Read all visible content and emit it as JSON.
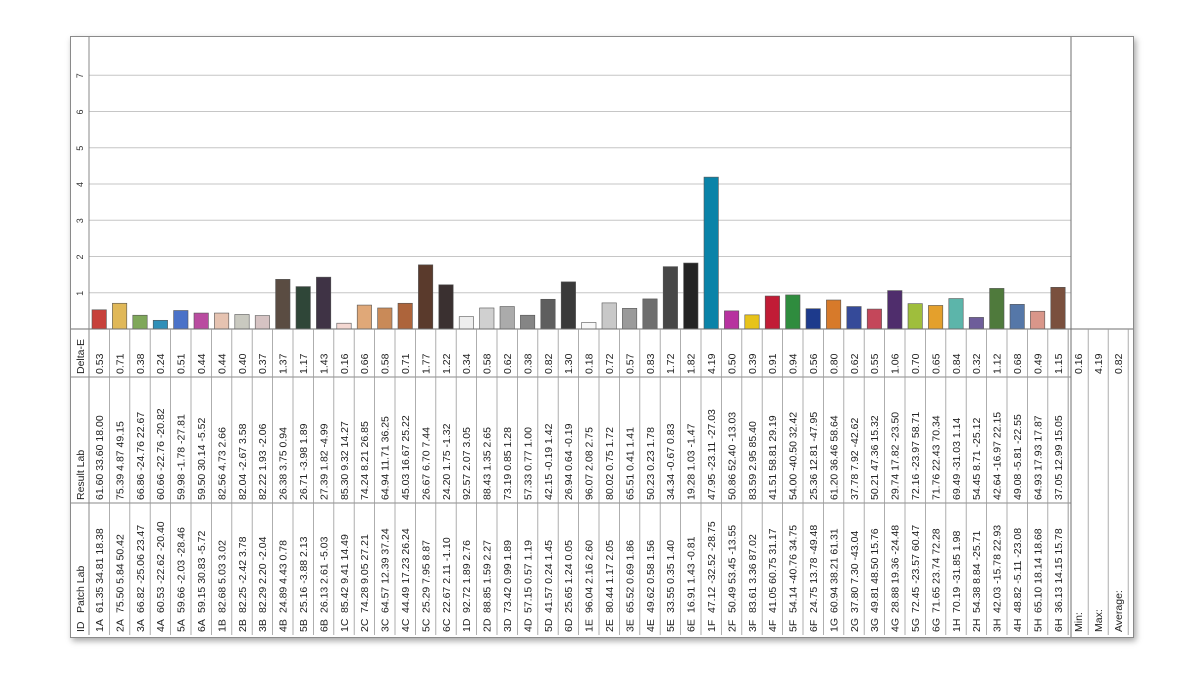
{
  "chart_data": {
    "type": "bar",
    "ylim": [
      0,
      8
    ],
    "yticks": [
      "1",
      "2",
      "3",
      "4",
      "5",
      "6",
      "7"
    ],
    "grid": true,
    "table_headers": {
      "id": "ID",
      "patch_lab": "Patch Lab",
      "result_lab": "Result Lab",
      "delta_e": "Delta-E"
    },
    "categories": [
      "1A",
      "2A",
      "3A",
      "4A",
      "5A",
      "6A",
      "1B",
      "2B",
      "3B",
      "4B",
      "5B",
      "6B",
      "1C",
      "2C",
      "3C",
      "4C",
      "5C",
      "6C",
      "1D",
      "2D",
      "3D",
      "4D",
      "5D",
      "6D",
      "1E",
      "2E",
      "3E",
      "4E",
      "5E",
      "6E",
      "1F",
      "2F",
      "3F",
      "4F",
      "5F",
      "6F",
      "1G",
      "2G",
      "3G",
      "4G",
      "5G",
      "6G",
      "1H",
      "2H",
      "3H",
      "4H",
      "5H",
      "6H"
    ],
    "patch_lab": [
      "61.35 34.81 18.38",
      "75.50 5.84 50.42",
      "66.82 -25.06 23.47",
      "60.53 -22.62 -20.40",
      "59.66 -2.03 -28.46",
      "59.15 30.83 -5.72",
      "82.68 5.03 3.02",
      "82.25 -2.42 3.78",
      "82.29 2.20 -2.04",
      "24.89 4.43 0.78",
      "25.16 -3.88 2.13",
      "26.13 2.61 -5.03",
      "85.42 9.41 14.49",
      "74.28 9.05 27.21",
      "64.57 12.39 37.24",
      "44.49 17.23 26.24",
      "25.29 7.95 8.87",
      "22.67 2.11 -1.10",
      "92.72 1.89 2.76",
      "88.85 1.59 2.27",
      "73.42 0.99 1.89",
      "57.15 0.57 1.19",
      "41.57 0.24 1.45",
      "25.65 1.24 0.05",
      "96.04 2.16 2.60",
      "80.44 1.17 2.05",
      "65.52 0.69 1.86",
      "49.62 0.58 1.56",
      "33.55 0.35 1.40",
      "16.91 1.43 -0.81",
      "47.12 -32.52 -28.75",
      "50.49 53.45 -13.55",
      "83.61 3.36 87.02",
      "41.05 60.75 31.17",
      "54.14 -40.76 34.75",
      "24.75 13.78 -49.48",
      "60.94 38.21 61.31",
      "37.80 7.30 -43.04",
      "49.81 48.50 15.76",
      "28.88 19.36 -24.48",
      "72.45 -23.57 60.47",
      "71.65 23.74 72.28",
      "70.19 -31.85 1.98",
      "54.38 8.84 -25.71",
      "42.03 -15.78 22.93",
      "48.82 -5.11 -23.08",
      "65.10 18.14 18.68",
      "36.13 14.15 15.78"
    ],
    "result_lab": [
      "61.60 33.60 18.00",
      "75.39 4.87 49.15",
      "66.86 -24.76 22.67",
      "60.66 -22.76 -20.82",
      "59.98 -1.78 -27.81",
      "59.50 30.14 -5.52",
      "82.56 4.73 2.66",
      "82.04 -2.67 3.58",
      "82.22 1.93 -2.06",
      "26.38 3.75 0.94",
      "26.71 -3.98 1.89",
      "27.39 1.82 -4.99",
      "85.30 9.32 14.27",
      "74.24 8.21 26.85",
      "64.94 11.71 36.25",
      "45.03 16.67 25.22",
      "26.67 6.70 7.44",
      "24.20 1.75 -1.32",
      "92.57 2.07 3.05",
      "88.43 1.35 2.65",
      "73.19 0.85 1.28",
      "57.33 0.77 1.00",
      "42.15 -0.19 1.42",
      "26.94 0.64 -0.19",
      "96.07 2.08 2.75",
      "80.02 0.75 1.72",
      "65.51 0.41 1.41",
      "50.23 0.23 1.78",
      "34.34 -0.67 0.83",
      "19.28 1.03 -1.47",
      "47.95 -23.11 -27.03",
      "50.86 52.40 -13.03",
      "83.59 2.95 85.40",
      "41.51 58.81 29.19",
      "54.00 -40.50 32.42",
      "25.36 12.81 -47.95",
      "61.20 36.46 58.64",
      "37.78 7.92 -42.62",
      "50.21 47.36 15.32",
      "29.74 17.82 -23.50",
      "72.16 -23.97 58.71",
      "71.76 22.43 70.34",
      "69.49 -31.03 1.14",
      "54.45 8.71 -25.12",
      "42.64 -16.97 22.15",
      "49.08 -5.81 -22.55",
      "64.93 17.93 17.87",
      "37.05 12.99 15.05"
    ],
    "values": [
      0.53,
      0.71,
      0.38,
      0.24,
      0.51,
      0.44,
      0.44,
      0.4,
      0.37,
      1.37,
      1.17,
      1.43,
      0.16,
      0.66,
      0.58,
      0.71,
      1.77,
      1.22,
      0.34,
      0.58,
      0.62,
      0.38,
      0.82,
      1.3,
      0.18,
      0.72,
      0.57,
      0.83,
      1.72,
      1.82,
      4.19,
      0.5,
      0.39,
      0.91,
      0.94,
      0.56,
      0.8,
      0.62,
      0.55,
      1.06,
      0.7,
      0.65,
      0.84,
      0.32,
      1.12,
      0.68,
      0.49,
      1.15
    ],
    "value_labels": [
      "0.53",
      "0.71",
      "0.38",
      "0.24",
      "0.51",
      "0.44",
      "0.44",
      "0.40",
      "0.37",
      "1.37",
      "1.17",
      "1.43",
      "0.16",
      "0.66",
      "0.58",
      "0.71",
      "1.77",
      "1.22",
      "0.34",
      "0.58",
      "0.62",
      "0.38",
      "0.82",
      "1.30",
      "0.18",
      "0.72",
      "0.57",
      "0.83",
      "1.72",
      "1.82",
      "4.19",
      "0.50",
      "0.39",
      "0.91",
      "0.94",
      "0.56",
      "0.80",
      "0.62",
      "0.55",
      "1.06",
      "0.70",
      "0.65",
      "0.84",
      "0.32",
      "1.12",
      "0.68",
      "0.49",
      "1.15"
    ],
    "bar_colors": [
      "#c7413b",
      "#e0b858",
      "#7fa85a",
      "#2f8fb8",
      "#4a72c8",
      "#b94ca0",
      "#e6c3b1",
      "#c9c9c0",
      "#d6c3c3",
      "#5a4c42",
      "#2f4638",
      "#3f3345",
      "#f4d8d2",
      "#e0a878",
      "#c98a58",
      "#ad643b",
      "#5a3a2c",
      "#3a3030",
      "#eeeeee",
      "#d0d0d0",
      "#ababab",
      "#858585",
      "#5e5e5e",
      "#3a3a3a",
      "#f8f8f8",
      "#c8c8c8",
      "#9a9a9a",
      "#6e6e6e",
      "#474747",
      "#242424",
      "#0a83a8",
      "#b7329f",
      "#e7c31a",
      "#c11c36",
      "#2f8c3e",
      "#1d3a8c",
      "#d77a2a",
      "#354a99",
      "#c4475a",
      "#4f2d6c",
      "#9fbe3c",
      "#e4a02c",
      "#5cb5aa",
      "#6e5d9a",
      "#4f7a3c",
      "#5577a8",
      "#d9968a",
      "#7a503e"
    ],
    "summary": {
      "min_label": "Min:",
      "max_label": "Max:",
      "avg_label": "Average:",
      "min": "0.16",
      "max": "4.19",
      "avg": "0.82"
    }
  }
}
